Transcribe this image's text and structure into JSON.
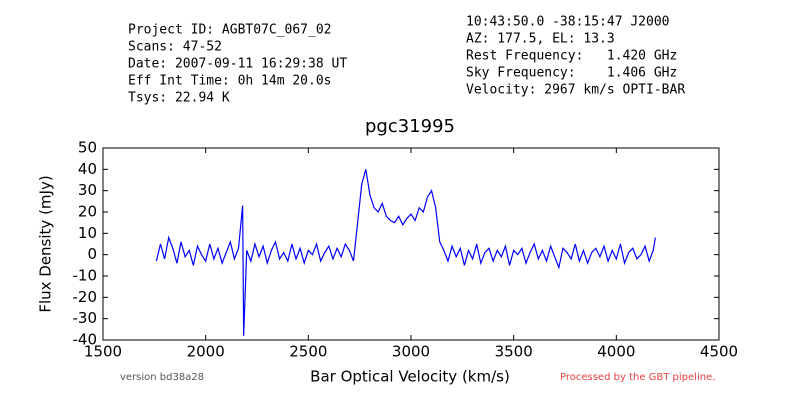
{
  "chart_data": {
    "type": "line",
    "title": "pgc31995",
    "header_left": [
      "Project ID: AGBT07C_067_02",
      "Scans: 47-52",
      "Date: 2007-09-11 16:29:38 UT",
      "Eff Int Time: 0h 14m 20.0s",
      "Tsys: 22.94 K"
    ],
    "header_right": [
      "10:43:50.0 -38:15:47 J2000",
      "AZ: 177.5, EL: 13.3",
      "Rest Frequency:   1.420 GHz",
      "Sky Frequency:    1.406 GHz",
      "Velocity: 2967 km/s OPTI-BAR"
    ],
    "footer_left": "version bd38a28",
    "footer_right": "Processed by the GBT pipeline.",
    "x_label": "Bar Optical Velocity (km/s)",
    "y_label": "Flux Density (mJy)",
    "xlim": [
      1500,
      4500
    ],
    "ylim": [
      -40,
      50
    ],
    "xticks": [
      1500,
      2000,
      2500,
      3000,
      3500,
      4000,
      4500
    ],
    "yticks": [
      -40,
      -30,
      -20,
      -10,
      0,
      10,
      20,
      30,
      40,
      50
    ],
    "x": [
      1760,
      1780,
      1800,
      1820,
      1840,
      1860,
      1880,
      1900,
      1920,
      1940,
      1960,
      1980,
      2000,
      2020,
      2040,
      2060,
      2080,
      2100,
      2120,
      2140,
      2160,
      2180,
      2185,
      2200,
      2220,
      2240,
      2260,
      2280,
      2300,
      2320,
      2340,
      2360,
      2380,
      2400,
      2420,
      2440,
      2460,
      2480,
      2500,
      2520,
      2540,
      2560,
      2580,
      2600,
      2620,
      2640,
      2660,
      2680,
      2700,
      2720,
      2740,
      2760,
      2780,
      2800,
      2820,
      2840,
      2860,
      2880,
      2900,
      2920,
      2940,
      2960,
      2980,
      3000,
      3020,
      3040,
      3060,
      3080,
      3100,
      3120,
      3140,
      3160,
      3180,
      3200,
      3220,
      3240,
      3260,
      3280,
      3300,
      3320,
      3340,
      3360,
      3380,
      3400,
      3420,
      3440,
      3460,
      3480,
      3500,
      3520,
      3540,
      3560,
      3580,
      3600,
      3620,
      3640,
      3660,
      3680,
      3700,
      3720,
      3740,
      3760,
      3780,
      3800,
      3820,
      3840,
      3860,
      3880,
      3900,
      3920,
      3940,
      3960,
      3980,
      4000,
      4020,
      4040,
      4060,
      4080,
      4100,
      4120,
      4140,
      4160,
      4180,
      4190
    ],
    "series": [
      {
        "name": "pgc31995",
        "color": "#0000ff",
        "values": [
          -3,
          5,
          -2,
          8,
          3,
          -4,
          6,
          -1,
          2,
          -5,
          4,
          0,
          -3,
          5,
          -2,
          3,
          -4,
          1,
          6,
          -2,
          3,
          23,
          -38,
          2,
          -3,
          5,
          -1,
          4,
          -4,
          2,
          6,
          -2,
          1,
          -3,
          5,
          -2,
          3,
          -4,
          2,
          0,
          5,
          -3,
          1,
          4,
          -2,
          3,
          -1,
          5,
          2,
          -3,
          15,
          33,
          40,
          28,
          22,
          20,
          24,
          18,
          16,
          15,
          18,
          14,
          17,
          19,
          16,
          22,
          20,
          27,
          30,
          22,
          6,
          2,
          -3,
          4,
          -1,
          3,
          -5,
          2,
          -2,
          5,
          -4,
          1,
          3,
          -3,
          2,
          -1,
          4,
          -5,
          2,
          0,
          3,
          -4,
          1,
          5,
          -2,
          2,
          -3,
          4,
          -1,
          -6,
          3,
          1,
          -2,
          5,
          -3,
          2,
          -4,
          1,
          3,
          -1,
          4,
          -3,
          2,
          -2,
          5,
          -4,
          1,
          3,
          -2,
          0,
          4,
          -3,
          2,
          8
        ]
      }
    ]
  }
}
